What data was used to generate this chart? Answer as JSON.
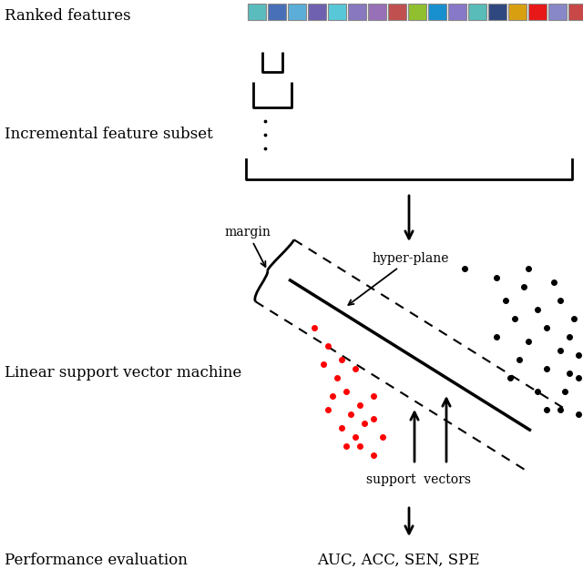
{
  "ranked_features_label": "Ranked features",
  "incremental_label": "Incremental feature subset",
  "svm_label": "Linear support vector machine",
  "perf_label": "Performance evaluation",
  "perf_metrics": "AUC, ACC, SEN, SPE",
  "margin_label": "margin",
  "hyperplane_label": "hyper-plane",
  "support_vectors_label": "support  vectors",
  "feature_colors": [
    "#5bbcbe",
    "#4870b8",
    "#5baed8",
    "#7060b0",
    "#58c8d8",
    "#8878c0",
    "#9870b8",
    "#c05050",
    "#90c030",
    "#1890d0",
    "#8878c8",
    "#5abcb8",
    "#304880",
    "#d8a010",
    "#e81818",
    "#8888c8",
    "#c84848"
  ],
  "background_color": "#ffffff"
}
